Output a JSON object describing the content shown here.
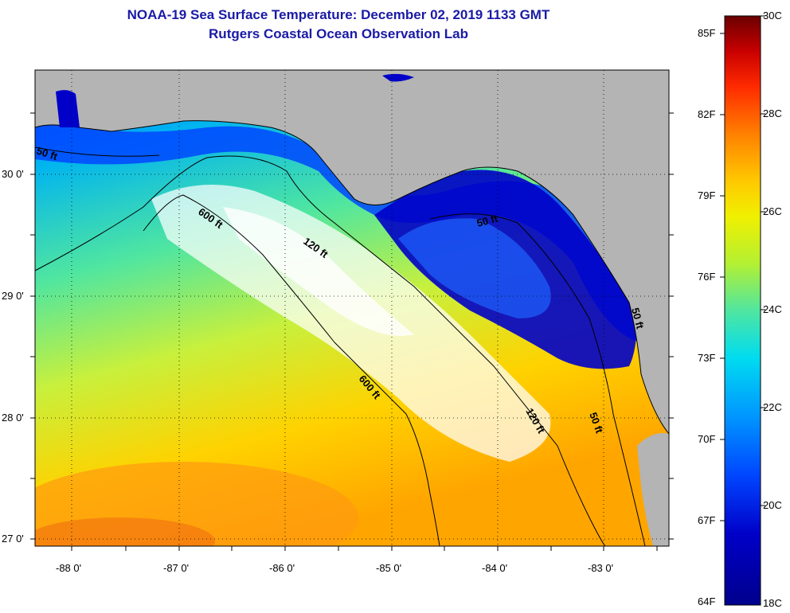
{
  "title": "NOAA-19 Sea Surface Temperature:  December 02, 2019 1133 GMT",
  "subtitle": "Rutgers Coastal Ocean Observation Lab",
  "axes": {
    "lat_labels": [
      "30 0'",
      "29 0'",
      "28 0'",
      "27 0'"
    ],
    "lon_labels": [
      "-88 0'",
      "-87 0'",
      "-86 0'",
      "-85 0'",
      "-84 0'",
      "-83 0'"
    ]
  },
  "contours": [
    "50 ft",
    "600 ft",
    "120 ft",
    "50 ft",
    "600 ft",
    "120 ft",
    "50 ft",
    "50 ft"
  ],
  "colorbar": {
    "fahrenheit_labels": [
      "85F",
      "82F",
      "79F",
      "76F",
      "73F",
      "70F",
      "67F",
      "64F"
    ],
    "celsius_labels": [
      "30C",
      "28C",
      "26C",
      "24C",
      "22C",
      "20C",
      "18C"
    ],
    "colors": [
      "#6b0000",
      "#c80000",
      "#ff2a00",
      "#ff8000",
      "#ffc800",
      "#f0f000",
      "#b4f032",
      "#50e6a0",
      "#00dcf0",
      "#0096ff",
      "#0046ff",
      "#0000c8",
      "#00008c"
    ]
  },
  "colors": {
    "land": "#b4b4b4",
    "title": "#1a1aa6",
    "cloud": "#ffffff"
  }
}
